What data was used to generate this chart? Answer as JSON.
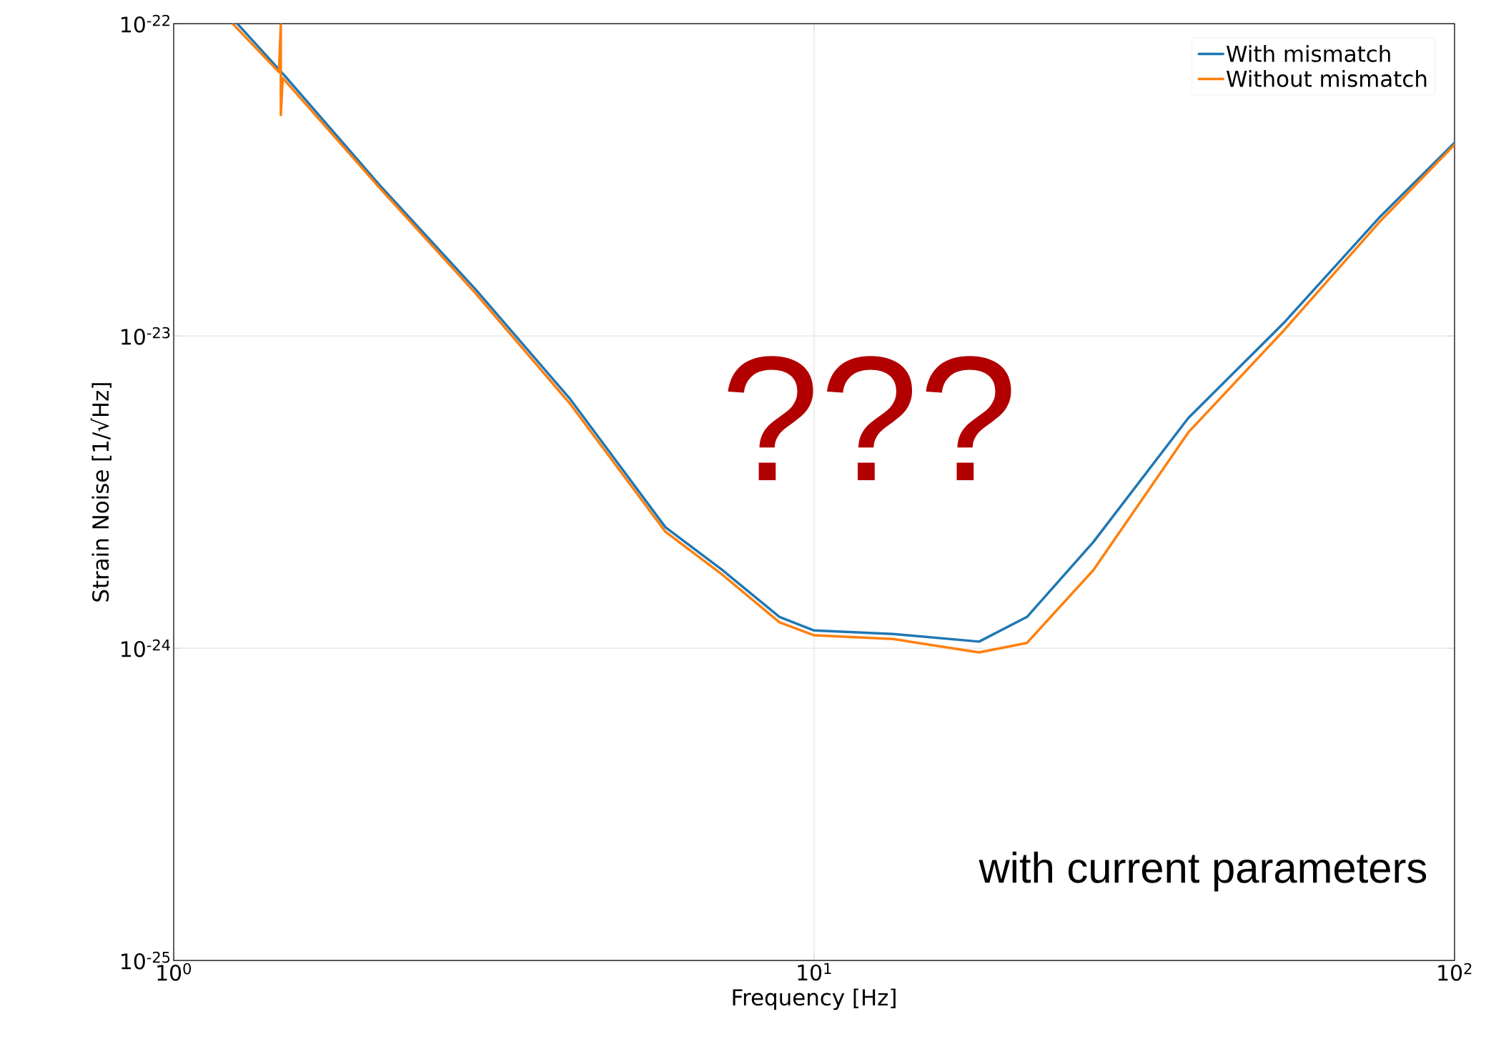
{
  "chart_data": {
    "type": "line",
    "xlabel": "Frequency [Hz]",
    "ylabel": "Strain Noise [1/√Hz]",
    "log": "xy",
    "grid": true,
    "legend": "top right",
    "xlim": [
      1,
      100
    ],
    "ylim": [
      1e-25,
      1e-22
    ],
    "xticks": [
      {
        "value": 1,
        "label": "10$^{0}$"
      },
      {
        "value": 10,
        "label": "10$^{1}$"
      },
      {
        "value": 100,
        "label": "10$^{2}$"
      }
    ],
    "yticks": [
      {
        "value": 1e-25,
        "label": "10$^{-25}$"
      },
      {
        "value": 1e-24,
        "label": "10$^{-24}$"
      },
      {
        "value": 1e-23,
        "label": "10$^{-23}$"
      },
      {
        "value": 1e-22,
        "label": "10$^{-22}$"
      }
    ],
    "annotations": [
      "???",
      "with current parameters"
    ],
    "series": [
      {
        "name": "With mismatch",
        "color": "#1f77b4",
        "x": [
          1.257,
          1.492,
          2.1,
          2.96,
          4.16,
          5.86,
          7.19,
          8.83,
          10,
          13.3,
          18.1,
          21.5,
          27.3,
          38.4,
          54.1,
          76.1,
          100
        ],
        "values": [
          1e-22,
          6.8e-23,
          3.03e-23,
          1.41e-23,
          6.28e-24,
          2.44e-24,
          1.78e-24,
          1.26e-24,
          1.14e-24,
          1.11e-24,
          1.05e-24,
          1.26e-24,
          2.19e-24,
          5.46e-24,
          1.1e-23,
          2.38e-23,
          4.16e-23
        ]
      },
      {
        "name": "Without mismatch",
        "color": "#ff7f0e",
        "x": [
          1.236,
          1.46,
          1.47,
          1.47,
          1.48,
          2.1,
          2.96,
          4.16,
          5.86,
          7.19,
          8.83,
          10,
          13.3,
          18.1,
          21.5,
          27.3,
          38.4,
          54.1,
          76.1,
          100
        ],
        "values": [
          1e-22,
          7e-23,
          1e-22,
          5.1e-23,
          6.7e-23,
          2.97e-23,
          1.37e-23,
          6.06e-24,
          2.36e-24,
          1.72e-24,
          1.21e-24,
          1.1e-24,
          1.07e-24,
          9.7e-25,
          1.04e-24,
          1.78e-24,
          4.91e-24,
          1.04e-23,
          2.3e-23,
          4.1e-23
        ]
      }
    ]
  }
}
